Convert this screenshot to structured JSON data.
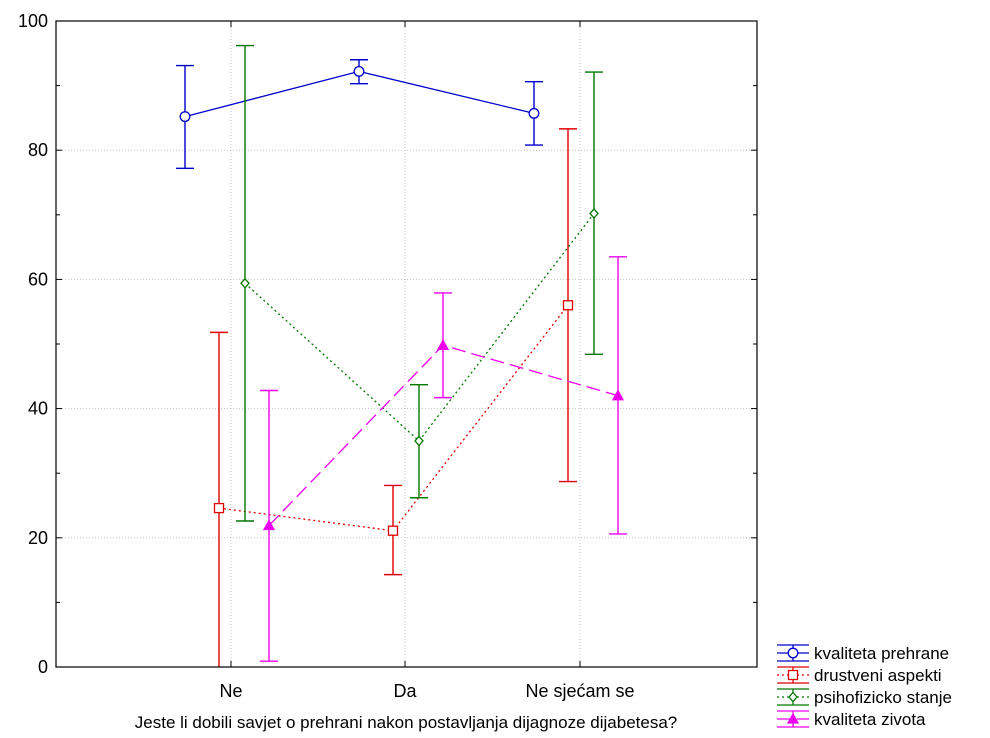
{
  "chart_data": {
    "type": "line",
    "title": "",
    "xlabel": "Jeste li dobili savjet o prehrani nakon postavljanja dijagnoze dijabetesa?",
    "ylabel": "",
    "categories": [
      "Ne",
      "Da",
      "Ne sjećam se"
    ],
    "ylim": [
      0,
      100
    ],
    "yticks": [
      0,
      20,
      40,
      60,
      80,
      100
    ],
    "grid": true,
    "legend_position": "bottom-right",
    "series": [
      {
        "name": "kvaliteta prehrane",
        "color": "#0000cc",
        "marker": "circle",
        "line_style": "solid",
        "values": [
          85.2,
          92.2,
          85.7
        ],
        "lower": [
          77.2,
          90.3,
          80.8
        ],
        "upper": [
          93.1,
          94.0,
          90.6
        ]
      },
      {
        "name": "drustveni aspekti",
        "color": "#e00000",
        "marker": "square",
        "line_style": "dotted",
        "values": [
          24.6,
          21.1,
          56.0
        ],
        "lower": [
          -2.5,
          14.3,
          28.7
        ],
        "upper": [
          51.8,
          28.1,
          83.3
        ]
      },
      {
        "name": "psihofizicko stanje",
        "color": "#007700",
        "marker": "diamond",
        "line_style": "dotted",
        "values": [
          59.4,
          35.0,
          70.2
        ],
        "lower": [
          22.6,
          26.2,
          48.4
        ],
        "upper": [
          96.2,
          43.7,
          92.1
        ]
      },
      {
        "name": "kvaliteta zivota",
        "color": "#ee00ee",
        "marker": "triangle",
        "line_style": "dashed",
        "values": [
          21.9,
          49.8,
          42.0
        ],
        "lower": [
          0.9,
          41.7,
          20.6
        ],
        "upper": [
          42.8,
          57.9,
          63.5
        ]
      }
    ]
  }
}
